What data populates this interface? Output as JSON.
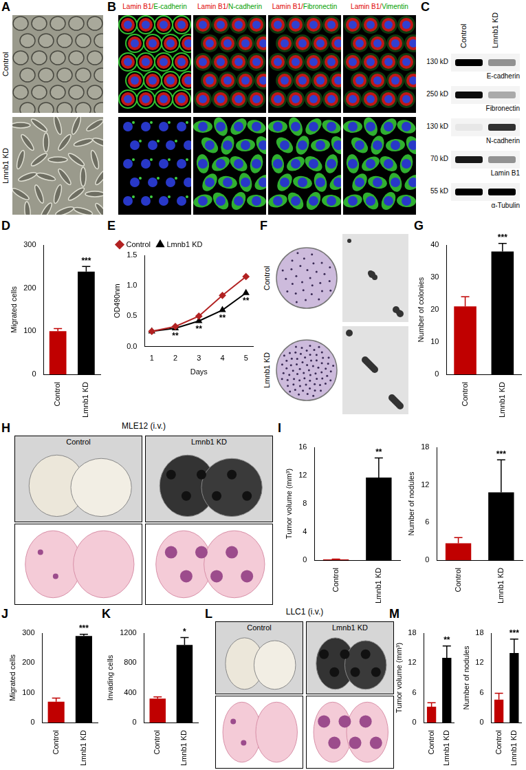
{
  "chart_data": [
    {
      "panel_label": "D",
      "type": "bar",
      "categories": [
        "Control",
        "Lmnb1 KD"
      ],
      "values": [
        100,
        238
      ],
      "errors": [
        6,
        12
      ],
      "colors": [
        "#c00000",
        "#000000"
      ],
      "y_label": "Migrated cells",
      "ylim": [
        0,
        300
      ],
      "yticks": [
        0,
        100,
        200,
        300
      ],
      "grid": false,
      "annotations": [
        {
          "category": "Lmnb1 KD",
          "text": "***"
        }
      ]
    },
    {
      "panel_label": "E",
      "type": "line",
      "x": [
        1,
        2,
        3,
        4,
        5
      ],
      "x_label": "Days",
      "y_label": "OD490nm",
      "xlim": [
        0.7,
        5.3
      ],
      "xticks": [
        1,
        2,
        3,
        4,
        5
      ],
      "ylim": [
        0,
        1.5
      ],
      "yticks": [
        {
          "value": 0,
          "label": "0.0"
        },
        {
          "value": 0.5,
          "label": "0.5"
        },
        {
          "value": 1,
          "label": "1.0"
        },
        {
          "value": 1.5,
          "label": "1.5"
        }
      ],
      "grid": false,
      "legend": "top-left",
      "series": [
        {
          "name": "Control",
          "color": "#b22222",
          "marker": "diamond",
          "values": [
            0.25,
            0.33,
            0.5,
            0.84,
            1.15
          ]
        },
        {
          "name": "Lmnb1 KD",
          "color": "#000000",
          "marker": "triangle",
          "values": [
            0.25,
            0.3,
            0.42,
            0.6,
            0.88
          ]
        }
      ],
      "annotations": [
        {
          "x": 2,
          "text": "**"
        },
        {
          "x": 3,
          "text": "**"
        },
        {
          "x": 4,
          "text": "**"
        },
        {
          "x": 5,
          "text": "**"
        }
      ]
    },
    {
      "panel_label": "G",
      "type": "bar",
      "categories": [
        "Control",
        "Lmnb1 KD"
      ],
      "values": [
        21,
        38
      ],
      "errors": [
        3,
        2.5
      ],
      "colors": [
        "#c00000",
        "#000000"
      ],
      "y_label": "Number of colonies",
      "ylim": [
        0,
        40
      ],
      "yticks": [
        0,
        10,
        20,
        30,
        40
      ],
      "grid": false,
      "annotations": [
        {
          "category": "Lmnb1 KD",
          "text": "***"
        }
      ]
    },
    {
      "panel_label": "I",
      "type": "bar",
      "categories": [
        "Control",
        "Lmnb1 KD"
      ],
      "values": [
        0.1,
        11.7
      ],
      "errors": [
        0.05,
        2.8
      ],
      "colors": [
        "#c00000",
        "#000000"
      ],
      "y_label": "Tumor volume (mm³)",
      "ylim": [
        0,
        16
      ],
      "yticks": [
        0,
        4,
        8,
        12,
        16
      ],
      "grid": false,
      "annotations": [
        {
          "category": "Lmnb1 KD",
          "text": "**"
        }
      ]
    },
    {
      "type": "bar",
      "categories": [
        "Control",
        "Lmnb1 KD"
      ],
      "values": [
        2.7,
        10.8
      ],
      "errors": [
        0.9,
        5.2
      ],
      "colors": [
        "#c00000",
        "#000000"
      ],
      "y_label": "Number of nodules",
      "ylim": [
        0,
        18
      ],
      "yticks": [
        0,
        6,
        12,
        18
      ],
      "grid": false,
      "annotations": [
        {
          "category": "Lmnb1 KD",
          "text": "***"
        }
      ]
    },
    {
      "panel_label": "J",
      "type": "bar",
      "categories": [
        "Control",
        "Lmnb1 KD"
      ],
      "values": [
        70,
        290
      ],
      "errors": [
        12,
        6
      ],
      "colors": [
        "#c00000",
        "#000000"
      ],
      "y_label": "Migrated cells",
      "ylim": [
        0,
        300
      ],
      "yticks": [
        0,
        100,
        200,
        300
      ],
      "grid": false,
      "annotations": [
        {
          "category": "Lmnb1 KD",
          "text": "***"
        }
      ]
    },
    {
      "panel_label": "K",
      "type": "bar",
      "categories": [
        "Control",
        "Lmnb1 KD"
      ],
      "values": [
        320,
        1040
      ],
      "errors": [
        25,
        100
      ],
      "colors": [
        "#c00000",
        "#000000"
      ],
      "y_label": "Invading cells",
      "ylim": [
        0,
        1200
      ],
      "yticks": [
        0,
        400,
        800,
        1200
      ],
      "grid": false,
      "annotations": [
        {
          "category": "Lmnb1 KD",
          "text": "*"
        }
      ]
    },
    {
      "panel_label": "M",
      "type": "bar",
      "categories": [
        "Control",
        "Lmnb1 KD"
      ],
      "values": [
        3.2,
        13
      ],
      "errors": [
        0.8,
        2.4
      ],
      "colors": [
        "#c00000",
        "#000000"
      ],
      "y_label": "Tumor volume (mm³)",
      "ylim": [
        0,
        18
      ],
      "yticks": [
        0,
        6,
        12,
        18
      ],
      "grid": false,
      "annotations": [
        {
          "category": "Lmnb1 KD",
          "text": "**"
        }
      ]
    },
    {
      "type": "bar",
      "categories": [
        "Control",
        "Lmnb1 KD"
      ],
      "values": [
        4.6,
        14
      ],
      "errors": [
        1.3,
        2.8
      ],
      "colors": [
        "#c00000",
        "#000000"
      ],
      "y_label": "Number of nodules",
      "ylim": [
        0,
        18
      ],
      "yticks": [
        0,
        6,
        12,
        18
      ],
      "grid": false,
      "annotations": [
        {
          "category": "Lmnb1 KD",
          "text": "***"
        }
      ]
    }
  ],
  "image_panels": [
    {
      "panel_label": "A",
      "row_labels": [
        "Control",
        "Lmnb1 KD"
      ]
    },
    {
      "panel_label": "B",
      "column_labels": [
        {
          "red": "Lamin B1/",
          "green": "E-cadherin"
        },
        {
          "red": "Lamin B1/",
          "green": "N-cadherin"
        },
        {
          "red": "Lamin B1/",
          "green": "Fibronectin"
        },
        {
          "red": "Lamin B1/",
          "green": "Vimentin"
        }
      ]
    },
    {
      "panel_label": "C",
      "column_labels": [
        "Control",
        "Lmnb1 KD"
      ],
      "bands": [
        {
          "size": "130 kD",
          "protein": "E-cadherin"
        },
        {
          "size": "250 kD",
          "protein": "Fibronectin"
        },
        {
          "size": "130 kD",
          "protein": "N-cadherin"
        },
        {
          "size": "70 kD",
          "protein": "Lamin B1"
        },
        {
          "size": "55 kD",
          "protein": "α-Tubulin"
        }
      ]
    },
    {
      "panel_label": "F",
      "row_labels": [
        "Control",
        "Lmnb1 KD"
      ]
    },
    {
      "panel_label": "H",
      "title": "MLE12 (i.v.)",
      "column_labels": [
        "Control",
        "Lmnb1 KD"
      ]
    },
    {
      "panel_label": "L",
      "title": "LLC1 (i.v.)",
      "column_labels": [
        "Control",
        "Lmnb1 KD"
      ]
    }
  ]
}
